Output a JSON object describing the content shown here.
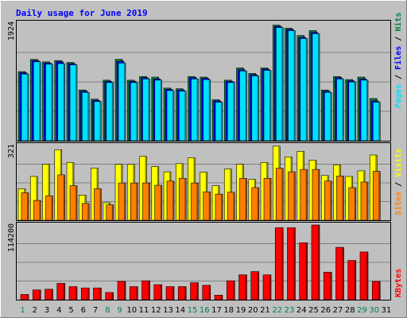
{
  "chart_data": [
    {
      "type": "bar",
      "panel": "hits-files-pages",
      "title": "Daily usage for June 2019",
      "ytick": "1924",
      "ylim": [
        0,
        1924
      ],
      "categories": [
        "1",
        "2",
        "3",
        "4",
        "5",
        "6",
        "7",
        "8",
        "9",
        "10",
        "11",
        "12",
        "13",
        "14",
        "15",
        "16",
        "17",
        "18",
        "19",
        "20",
        "21",
        "22",
        "23",
        "24",
        "25",
        "26",
        "27",
        "28",
        "29",
        "30",
        "31"
      ],
      "series": [
        {
          "name": "Hits",
          "color": "#008040",
          "values": [
            1130,
            1330,
            1290,
            1310,
            1280,
            830,
            680,
            990,
            1330,
            990,
            1050,
            1040,
            860,
            850,
            1050,
            1040,
            670,
            990,
            1190,
            1100,
            1190,
            1890,
            1840,
            1720,
            1800,
            830,
            1050,
            1000,
            1040,
            690,
            0
          ]
        },
        {
          "name": "Files",
          "color": "#0000ff",
          "values": [
            1110,
            1310,
            1270,
            1290,
            1260,
            810,
            660,
            970,
            1300,
            970,
            1030,
            1010,
            840,
            830,
            1030,
            1020,
            650,
            970,
            1160,
            1080,
            1170,
            1870,
            1820,
            1690,
            1770,
            810,
            1030,
            980,
            1010,
            650,
            0
          ]
        },
        {
          "name": "Pages",
          "color": "#00e0ff",
          "values": [
            1090,
            1290,
            1250,
            1260,
            1240,
            790,
            640,
            950,
            1270,
            950,
            1010,
            990,
            820,
            810,
            1010,
            1000,
            630,
            950,
            1140,
            1060,
            1150,
            1850,
            1800,
            1670,
            1750,
            790,
            1010,
            960,
            990,
            630,
            0
          ]
        }
      ]
    },
    {
      "type": "bar",
      "panel": "visits-sites",
      "ytick": "321",
      "ylim": [
        0,
        321
      ],
      "categories": [
        "1",
        "2",
        "3",
        "4",
        "5",
        "6",
        "7",
        "8",
        "9",
        "10",
        "11",
        "12",
        "13",
        "14",
        "15",
        "16",
        "17",
        "18",
        "19",
        "20",
        "21",
        "22",
        "23",
        "24",
        "25",
        "26",
        "27",
        "28",
        "29",
        "30",
        "31"
      ],
      "series": [
        {
          "name": "Visits",
          "color": "#ffff00",
          "values": [
            135,
            188,
            240,
            303,
            248,
            108,
            224,
            75,
            240,
            240,
            274,
            230,
            208,
            243,
            268,
            206,
            148,
            220,
            240,
            175,
            248,
            318,
            272,
            296,
            258,
            192,
            238,
            188,
            212,
            280,
            0
          ]
        },
        {
          "name": "Sites",
          "color": "#ff8000",
          "values": [
            118,
            85,
            105,
            195,
            148,
            72,
            135,
            66,
            160,
            160,
            160,
            150,
            168,
            180,
            160,
            122,
            112,
            120,
            180,
            140,
            180,
            223,
            208,
            218,
            218,
            168,
            190,
            140,
            164,
            210,
            0
          ]
        }
      ]
    },
    {
      "type": "bar",
      "panel": "kbytes",
      "ytick": "114200",
      "ylim": [
        0,
        114200
      ],
      "categories": [
        "1",
        "2",
        "3",
        "4",
        "5",
        "6",
        "7",
        "8",
        "9",
        "10",
        "11",
        "12",
        "13",
        "14",
        "15",
        "16",
        "17",
        "18",
        "19",
        "20",
        "21",
        "22",
        "23",
        "24",
        "25",
        "26",
        "27",
        "28",
        "29",
        "30",
        "31"
      ],
      "series": [
        {
          "name": "KBytes",
          "color": "#ff0000",
          "values": [
            8000,
            15000,
            16000,
            25000,
            20000,
            18000,
            18000,
            11000,
            28000,
            20000,
            29000,
            23000,
            20000,
            20000,
            26000,
            22000,
            7000,
            29000,
            38000,
            43000,
            38000,
            110000,
            110000,
            87000,
            114200,
            42000,
            80000,
            60000,
            73000,
            28000,
            0
          ]
        }
      ]
    }
  ],
  "axis": {
    "days": [
      "1",
      "2",
      "3",
      "4",
      "5",
      "6",
      "7",
      "8",
      "9",
      "10",
      "11",
      "12",
      "13",
      "14",
      "15",
      "16",
      "17",
      "18",
      "19",
      "20",
      "21",
      "22",
      "23",
      "24",
      "25",
      "26",
      "27",
      "28",
      "29",
      "30",
      "31"
    ],
    "weekend_days": [
      1,
      8,
      9,
      15,
      16,
      22,
      23,
      29,
      30
    ],
    "weekend_color": "#00805c",
    "weekday_color": "#000000"
  },
  "legend": {
    "top": [
      {
        "text": "Hits",
        "color": "#008040"
      },
      {
        "text": "Files",
        "color": "#0000ff"
      },
      {
        "text": "Pages",
        "color": "#00e0ff"
      }
    ],
    "middle": [
      {
        "text": "Visits",
        "color": "#ffff00"
      },
      {
        "text": "Sites",
        "color": "#ff8000"
      }
    ],
    "bottom": [
      {
        "text": "KBytes",
        "color": "#ff0000"
      }
    ],
    "separator": " / "
  }
}
